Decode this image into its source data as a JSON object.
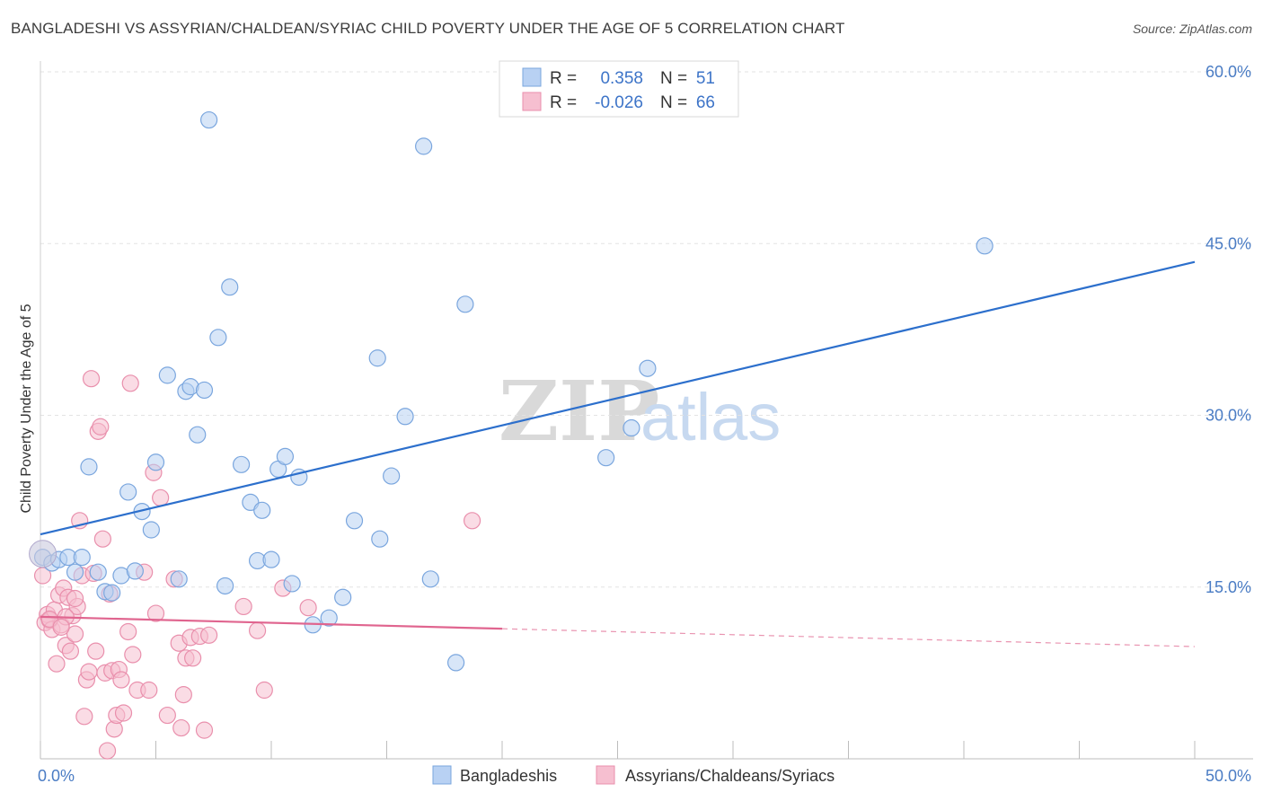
{
  "title": "BANGLADESHI VS ASSYRIAN/CHALDEAN/SYRIAC CHILD POVERTY UNDER THE AGE OF 5 CORRELATION CHART",
  "source": "Source: ZipAtlas.com",
  "watermark": {
    "zip": "ZIP",
    "atlas": "atlas"
  },
  "legend": {
    "r_label": "R =",
    "n_label": "N =",
    "rows": [
      {
        "r": "0.358",
        "n": "51"
      },
      {
        "r": "-0.026",
        "n": "66"
      }
    ]
  },
  "colors": {
    "blue_fill": "#b8d1f3",
    "blue_stroke": "#7aa6de",
    "blue_line": "#2c6fcc",
    "pink_fill": "#f6bfd0",
    "pink_stroke": "#e98fac",
    "pink_line": "#e0658f"
  },
  "chart_data": {
    "type": "scatter",
    "title": "BANGLADESHI VS ASSYRIAN/CHALDEAN/SYRIAC CHILD POVERTY UNDER THE AGE OF 5 CORRELATION CHART",
    "xlabel": "",
    "ylabel": "Child Poverty Under the Age of 5",
    "xlim": [
      0,
      50
    ],
    "ylim": [
      0,
      60
    ],
    "x_tick_labels": [
      "0.0%",
      "50.0%"
    ],
    "y_ticks": [
      15,
      30,
      45,
      60
    ],
    "y_tick_labels": [
      "15.0%",
      "30.0%",
      "45.0%",
      "60.0%"
    ],
    "grid": true,
    "legend_position": "top-center",
    "series": [
      {
        "name": "Bangladeshis",
        "r": 0.358,
        "n": 51,
        "trend": {
          "x": [
            0,
            50
          ],
          "y": [
            19.6,
            43.4
          ]
        },
        "points": [
          [
            0.1,
            17.6
          ],
          [
            0.5,
            17.1
          ],
          [
            0.8,
            17.4
          ],
          [
            1.2,
            17.6
          ],
          [
            1.5,
            16.3
          ],
          [
            1.8,
            17.6
          ],
          [
            2.1,
            25.5
          ],
          [
            2.5,
            16.3
          ],
          [
            2.8,
            14.6
          ],
          [
            3.1,
            14.5
          ],
          [
            3.5,
            16.0
          ],
          [
            3.8,
            23.3
          ],
          [
            4.1,
            16.4
          ],
          [
            4.4,
            21.6
          ],
          [
            4.8,
            20.0
          ],
          [
            5.0,
            25.9
          ],
          [
            5.5,
            33.5
          ],
          [
            6.0,
            15.7
          ],
          [
            6.3,
            32.1
          ],
          [
            6.5,
            32.5
          ],
          [
            6.8,
            28.3
          ],
          [
            7.1,
            32.2
          ],
          [
            7.3,
            55.8
          ],
          [
            7.7,
            36.8
          ],
          [
            8.0,
            15.1
          ],
          [
            8.2,
            41.2
          ],
          [
            8.7,
            25.7
          ],
          [
            9.1,
            22.4
          ],
          [
            9.4,
            17.3
          ],
          [
            9.6,
            21.7
          ],
          [
            10.0,
            17.4
          ],
          [
            10.3,
            25.3
          ],
          [
            10.6,
            26.4
          ],
          [
            10.9,
            15.3
          ],
          [
            11.2,
            24.6
          ],
          [
            11.8,
            11.7
          ],
          [
            12.5,
            12.3
          ],
          [
            13.1,
            14.1
          ],
          [
            13.6,
            20.8
          ],
          [
            14.6,
            35.0
          ],
          [
            14.7,
            19.2
          ],
          [
            15.2,
            24.7
          ],
          [
            15.8,
            29.9
          ],
          [
            16.6,
            53.5
          ],
          [
            16.9,
            15.7
          ],
          [
            18.0,
            8.4
          ],
          [
            18.4,
            39.7
          ],
          [
            24.5,
            26.3
          ],
          [
            25.6,
            28.9
          ],
          [
            26.3,
            34.1
          ],
          [
            40.9,
            44.8
          ]
        ]
      },
      {
        "name": "Assyrians/Chaldeans/Syriacs",
        "r": -0.026,
        "n": 66,
        "trend": {
          "x": [
            0,
            50
          ],
          "y": [
            12.4,
            9.8
          ],
          "solid_until_x": 20
        },
        "points": [
          [
            0.1,
            16.0
          ],
          [
            0.2,
            11.9
          ],
          [
            0.3,
            12.6
          ],
          [
            0.4,
            12.1
          ],
          [
            0.5,
            11.3
          ],
          [
            0.6,
            13.0
          ],
          [
            0.7,
            8.3
          ],
          [
            0.8,
            14.3
          ],
          [
            0.9,
            11.7
          ],
          [
            1.0,
            14.9
          ],
          [
            1.1,
            9.9
          ],
          [
            1.2,
            14.1
          ],
          [
            1.3,
            9.4
          ],
          [
            1.4,
            12.5
          ],
          [
            1.5,
            10.9
          ],
          [
            1.6,
            13.3
          ],
          [
            1.7,
            20.8
          ],
          [
            1.8,
            16.0
          ],
          [
            1.9,
            3.7
          ],
          [
            2.0,
            6.9
          ],
          [
            2.1,
            7.6
          ],
          [
            2.2,
            33.2
          ],
          [
            2.3,
            16.2
          ],
          [
            2.4,
            9.4
          ],
          [
            2.5,
            28.6
          ],
          [
            2.6,
            29.0
          ],
          [
            2.7,
            19.2
          ],
          [
            2.8,
            7.5
          ],
          [
            2.9,
            0.7
          ],
          [
            3.0,
            14.4
          ],
          [
            3.1,
            7.7
          ],
          [
            3.2,
            2.6
          ],
          [
            3.3,
            3.8
          ],
          [
            3.4,
            7.8
          ],
          [
            3.5,
            6.9
          ],
          [
            3.6,
            4.0
          ],
          [
            3.8,
            11.1
          ],
          [
            3.9,
            32.8
          ],
          [
            4.0,
            9.1
          ],
          [
            4.2,
            6.0
          ],
          [
            4.5,
            16.3
          ],
          [
            4.7,
            6.0
          ],
          [
            4.9,
            25.0
          ],
          [
            5.0,
            12.7
          ],
          [
            5.2,
            22.8
          ],
          [
            5.5,
            3.8
          ],
          [
            5.8,
            15.7
          ],
          [
            6.0,
            10.1
          ],
          [
            6.1,
            2.7
          ],
          [
            6.2,
            5.6
          ],
          [
            6.3,
            8.8
          ],
          [
            6.5,
            10.6
          ],
          [
            6.6,
            8.8
          ],
          [
            6.9,
            10.7
          ],
          [
            7.1,
            2.5
          ],
          [
            7.3,
            10.8
          ],
          [
            8.8,
            13.3
          ],
          [
            9.4,
            11.2
          ],
          [
            9.7,
            6.0
          ],
          [
            10.5,
            14.9
          ],
          [
            11.6,
            13.2
          ],
          [
            18.7,
            20.8
          ],
          [
            0.4,
            12.2
          ],
          [
            1.1,
            12.4
          ],
          [
            0.9,
            11.5
          ],
          [
            1.5,
            14.0
          ]
        ]
      }
    ]
  },
  "bottom_legend": [
    "Bangladeshis",
    "Assyrians/Chaldeans/Syriacs"
  ]
}
